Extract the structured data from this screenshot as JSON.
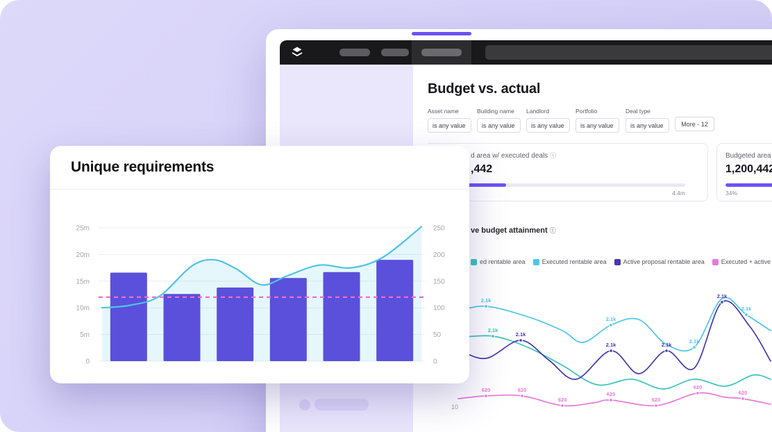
{
  "icons": {
    "logo": "layers-icon",
    "info": "ⓘ"
  },
  "dashboard": {
    "title": "Budget vs. actual",
    "filters": [
      {
        "label": "Asset name",
        "value": "is any value"
      },
      {
        "label": "Building name",
        "value": "is any value"
      },
      {
        "label": "Landlord",
        "value": "is any value"
      },
      {
        "label": "Portfolio",
        "value": "is any value"
      },
      {
        "label": "Deal type",
        "value": "is any value"
      }
    ],
    "more_label": "More - 12",
    "kpis": [
      {
        "label": "d area w/ executed deals",
        "value": ",442",
        "progress_pct": 24,
        "note": "4.4m"
      },
      {
        "label": "Budgeted area",
        "value": "1,200,442",
        "progress_pct": 34,
        "note": "34%"
      }
    ],
    "section": {
      "title": "ve budget attainment"
    },
    "legend": [
      {
        "label": "ed rentable area",
        "color": "#3ac3ba"
      },
      {
        "label": "Executed rentable area",
        "color": "#4cc6ea"
      },
      {
        "label": "Active proposal rentable area",
        "color": "#4239b0"
      },
      {
        "label": "Executed + active",
        "color": "#e679dc"
      }
    ],
    "attainment_chart": {
      "type": "line",
      "y_tick": "10",
      "series": [
        {
          "name": "budgeted-rentable-area",
          "color": "#3ac3ba",
          "points": [
            [
              12,
              90
            ],
            [
              62,
              88
            ],
            [
              112,
              104
            ],
            [
              162,
              130
            ],
            [
              212,
              158
            ],
            [
              262,
              150
            ],
            [
              307,
              164
            ],
            [
              352,
              150
            ],
            [
              397,
              160
            ],
            [
              437,
              144
            ],
            [
              462,
              150
            ]
          ],
          "labels": [
            {
              "i": 1,
              "text": "2.1k"
            }
          ]
        },
        {
          "name": "executed-rentable-area",
          "color": "#4cc6ea",
          "points": [
            [
              12,
              52
            ],
            [
              52,
              45
            ],
            [
              112,
              60
            ],
            [
              162,
              80
            ],
            [
              192,
              97
            ],
            [
              232,
              72
            ],
            [
              272,
              64
            ],
            [
              312,
              100
            ],
            [
              352,
              104
            ],
            [
              392,
              34
            ],
            [
              427,
              57
            ],
            [
              462,
              80
            ]
          ],
          "labels": [
            {
              "i": 1,
              "text": "2.1k"
            },
            {
              "i": 5,
              "text": "2.1k"
            },
            {
              "i": 8,
              "text": "2.1k"
            },
            {
              "i": 10,
              "text": "2.1k"
            }
          ]
        },
        {
          "name": "active-proposal-rentable-area",
          "color": "#4239b0",
          "points": [
            [
              12,
              107
            ],
            [
              52,
              120
            ],
            [
              102,
              94
            ],
            [
              142,
              122
            ],
            [
              182,
              150
            ],
            [
              232,
              109
            ],
            [
              272,
              142
            ],
            [
              312,
              109
            ],
            [
              352,
              134
            ],
            [
              392,
              39
            ],
            [
              432,
              74
            ],
            [
              462,
              124
            ]
          ],
          "labels": [
            {
              "i": 0,
              "text": "2.1k"
            },
            {
              "i": 2,
              "text": "2.1k"
            },
            {
              "i": 5,
              "text": "2.1k"
            },
            {
              "i": 7,
              "text": "2.1k"
            },
            {
              "i": 9,
              "text": "2.1k"
            }
          ]
        },
        {
          "name": "executed-plus-active",
          "color": "#e679dc",
          "points": [
            [
              12,
              178
            ],
            [
              52,
              174
            ],
            [
              104,
              174
            ],
            [
              162,
              188
            ],
            [
              207,
              184
            ],
            [
              232,
              180
            ],
            [
              297,
              188
            ],
            [
              357,
              170
            ],
            [
              397,
              176
            ],
            [
              422,
              178
            ],
            [
              462,
              186
            ]
          ],
          "labels": [
            {
              "i": 1,
              "text": "620"
            },
            {
              "i": 2,
              "text": "620"
            },
            {
              "i": 3,
              "text": "620"
            },
            {
              "i": 5,
              "text": "620"
            },
            {
              "i": 6,
              "text": "620"
            },
            {
              "i": 7,
              "text": "620"
            },
            {
              "i": 9,
              "text": "620"
            }
          ]
        }
      ]
    }
  },
  "panel": {
    "title": "Unique requirements",
    "chart_data": {
      "type": "combo",
      "left_axis": {
        "ticks": [
          "0",
          "5m",
          "10m",
          "15m",
          "20m",
          "25m"
        ],
        "max_m": 25
      },
      "right_axis": {
        "ticks": [
          "0",
          "50",
          "100",
          "150",
          "200",
          "250"
        ],
        "max": 250
      },
      "bars_m": [
        16.6,
        12.6,
        13.8,
        15.6,
        16.7,
        19.0
      ],
      "bar_color": "#5a50db",
      "line": {
        "color": "#4fc3e8",
        "fill": "rgba(79,195,232,0.14)",
        "points": [
          [
            0,
            100
          ],
          [
            0.09,
            105
          ],
          [
            0.18,
            122
          ],
          [
            0.28,
            178
          ],
          [
            0.35,
            190
          ],
          [
            0.42,
            173
          ],
          [
            0.5,
            143
          ],
          [
            0.58,
            160
          ],
          [
            0.68,
            180
          ],
          [
            0.78,
            175
          ],
          [
            0.88,
            195
          ],
          [
            1,
            252
          ]
        ]
      },
      "reference_line": {
        "color": "#ee6dcd",
        "value_m": 12,
        "style": "dashed"
      }
    }
  }
}
